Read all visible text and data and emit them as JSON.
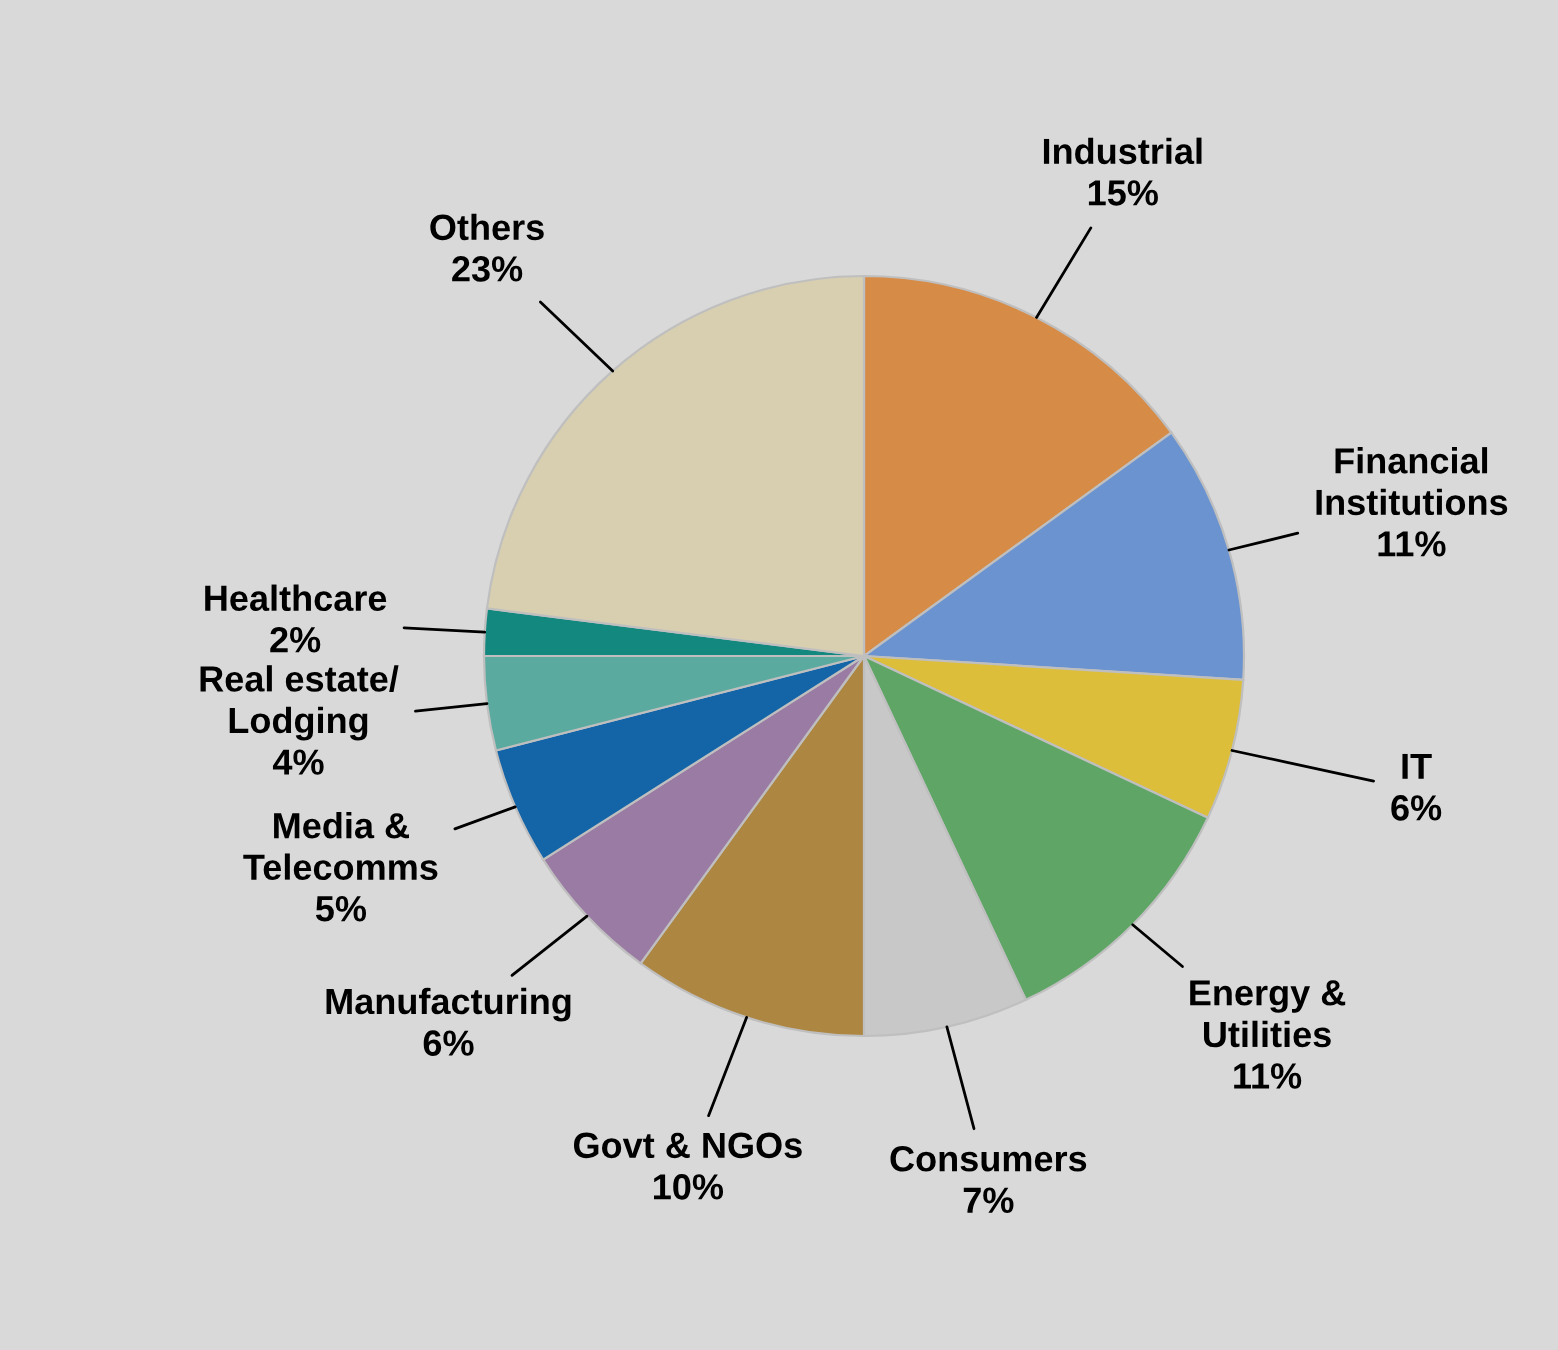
{
  "chart_data": {
    "type": "pie",
    "categories": [
      "Industrial",
      "Financial\nInstitutions",
      "IT",
      "Energy &\nUtilities",
      "Consumers",
      "Govt & NGOs",
      "Manufacturing",
      "Media &\nTelecomms",
      "Real estate/\nLodging",
      "Healthcare",
      "Others"
    ],
    "values": [
      15,
      11,
      6,
      11,
      7,
      10,
      6,
      5,
      4,
      2,
      23
    ],
    "value_labels": [
      "15%",
      "11%",
      "6%",
      "11%",
      "7%",
      "10%",
      "6%",
      "5%",
      "4%",
      "2%",
      "23%"
    ],
    "colors": [
      "#d68b47",
      "#6a93d0",
      "#dcbe3b",
      "#5fa566",
      "#c8c8c8",
      "#ad8642",
      "#9a7ba3",
      "#1464a8",
      "#5aaaa0",
      "#12887f",
      "#d8cfb0"
    ]
  }
}
